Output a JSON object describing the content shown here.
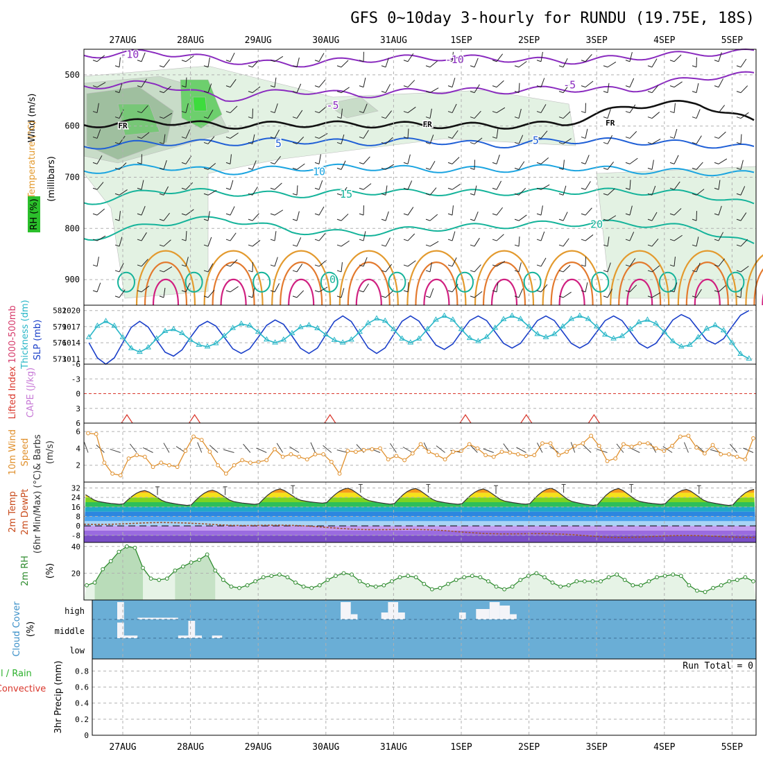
{
  "title": "GFS 0~10day 3-hourly for RUNDU (19.75E, 18S)",
  "dates": [
    "27AUG",
    "28AUG",
    "29AUG",
    "30AUG",
    "31AUG",
    "1SEP",
    "2SEP",
    "3SEP",
    "4SEP",
    "5SEP"
  ],
  "colors": {
    "rh_green": "#2bbf2b",
    "temp_purple": "#8a2bbf",
    "temp_blue": "#1f5fd6",
    "temp_cyan": "#1aa4e0",
    "temp_teal": "#14b39a",
    "temp_orange": "#e39a2e",
    "slp_blue": "#1a3fc9",
    "thick_cyan": "#2ab7c8",
    "li_red": "#d9362b",
    "wind_orange": "#e0902d",
    "rh_line": "#2e8b2e",
    "cloud_bg": "#6aaed6",
    "grid": "#b0b0b0"
  },
  "chart_data": [
    {
      "type": "contour",
      "panel": "upper-air",
      "ylabel": "(millibars)",
      "left_labels": [
        "Temperature (°C)",
        "Wind (m/s)",
        "RH (%)"
      ],
      "y_ticks": [
        500,
        600,
        700,
        800,
        900
      ],
      "ylim": [
        450,
        950
      ],
      "contour_labels": [
        {
          "text": "-10",
          "date_index": 0.1,
          "p": 460
        },
        {
          "text": "-10",
          "date_index": 4.9,
          "p": 470
        },
        {
          "text": "-5",
          "date_index": 3.1,
          "p": 560
        },
        {
          "text": "-5",
          "date_index": 6.6,
          "p": 520
        },
        {
          "text": "FR",
          "date_index": 0.0,
          "p": 598
        },
        {
          "text": "FR",
          "date_index": 4.5,
          "p": 595
        },
        {
          "text": "FR",
          "date_index": 7.2,
          "p": 592
        },
        {
          "text": "5",
          "date_index": 2.3,
          "p": 634
        },
        {
          "text": "5",
          "date_index": 6.1,
          "p": 628
        },
        {
          "text": "10",
          "date_index": 2.9,
          "p": 689
        },
        {
          "text": "15",
          "date_index": 3.3,
          "p": 733
        },
        {
          "text": "20",
          "date_index": 7.0,
          "p": 792
        },
        {
          "text": "0",
          "date_index": 3.1,
          "p": 900
        }
      ],
      "isotherms": [
        {
          "value": -10,
          "color": "purple",
          "p_series": [
            462,
            455,
            472,
            480,
            470,
            466,
            468,
            474,
            466,
            458,
            455
          ]
        },
        {
          "value": -5,
          "color": "purple",
          "p_series": [
            522,
            516,
            548,
            530,
            540,
            530,
            532,
            527,
            530,
            505,
            498
          ]
        },
        {
          "value": 0,
          "color": "black",
          "p_series": [
            598,
            590,
            600,
            596,
            597,
            598,
            600,
            596,
            560,
            555,
            600
          ]
        },
        {
          "value": 5,
          "color": "blue",
          "p_series": [
            640,
            632,
            633,
            628,
            633,
            628,
            638,
            628,
            630,
            635,
            645
          ]
        },
        {
          "value": 10,
          "color": "cyan",
          "p_series": [
            688,
            678,
            690,
            682,
            680,
            685,
            685,
            680,
            687,
            690,
            695
          ]
        },
        {
          "value": 15,
          "color": "teal",
          "p_series": [
            750,
            725,
            730,
            735,
            728,
            730,
            730,
            727,
            728,
            732,
            760
          ]
        },
        {
          "value": 20,
          "color": "teal",
          "p_series": [
            820,
            790,
            780,
            805,
            810,
            800,
            795,
            790,
            790,
            800,
            840
          ]
        }
      ]
    },
    {
      "type": "line",
      "panel": "pressure",
      "left_labels": [
        "1000-500mb",
        "Thickness (dm)",
        "SLP (mb)"
      ],
      "y_ticks_left": [
        573,
        576,
        579,
        582
      ],
      "y_ticks_right": [
        1011,
        1014,
        1017,
        1020
      ],
      "ylim_left": [
        572,
        583
      ],
      "series": [
        {
          "name": "SLP",
          "axis": "right",
          "daily_high": [
            1018,
            1018,
            1018,
            1019,
            1019,
            1019,
            1019,
            1019,
            1019,
            1020
          ],
          "daily_low": [
            1010,
            1012,
            1012,
            1012,
            1012,
            1013,
            1013,
            1013,
            1013,
            1014
          ]
        },
        {
          "name": "Thickness",
          "axis": "left",
          "daily_high": [
            580,
            578,
            580,
            579,
            581,
            581,
            581,
            581,
            580,
            579
          ],
          "daily_low": [
            574,
            575,
            576,
            576,
            576,
            576,
            577,
            577,
            576,
            573
          ]
        }
      ]
    },
    {
      "type": "line",
      "panel": "stability",
      "left_labels": [
        "Lifted Index",
        "CAPE (J/kg)"
      ],
      "y_ticks": [
        -6,
        -3,
        0,
        3,
        6
      ],
      "tick_labels": [
        "-6",
        "-3",
        "0",
        "3",
        "6"
      ],
      "ylim": [
        -6,
        6
      ],
      "cape_spikes_date_index": [
        -0.4,
        0.6,
        2.6,
        4.6,
        5.5,
        6.5
      ]
    },
    {
      "type": "line",
      "panel": "10m-wind",
      "left_labels": [
        "10m Wind",
        "Speed",
        "& Barbs",
        "(m/s)"
      ],
      "y_ticks": [
        2,
        4,
        6
      ],
      "ylim": [
        0,
        7
      ],
      "series": [
        {
          "name": "Speed",
          "values": [
            5.8,
            5.7,
            2.3,
            1.0,
            0.8,
            2.8,
            3.2,
            3.0,
            1.8,
            2.3,
            2.0,
            1.8,
            3.7,
            5.4,
            5.0,
            3.6,
            2.0,
            1.0,
            2.0,
            2.6,
            2.3,
            2.4,
            2.6,
            3.9,
            3.0,
            3.3,
            3.0,
            2.7,
            3.3,
            3.3,
            2.4,
            1.0,
            3.7,
            3.6,
            3.8,
            3.9,
            4.0,
            2.7,
            3.1,
            2.6,
            3.4,
            4.5,
            3.6,
            3.2,
            2.7,
            3.6,
            3.7,
            4.5,
            4.0,
            3.2,
            3.0,
            3.6,
            3.5,
            3.3,
            3.1,
            3.2,
            4.6,
            4.6,
            3.2,
            3.6,
            4.3,
            4.6,
            5.5,
            4.3,
            2.5,
            2.8,
            4.5,
            4.2,
            4.6,
            4.6,
            4.0,
            3.7,
            4.3,
            5.4,
            5.5,
            4.1,
            3.4,
            4.4,
            3.3,
            3.3,
            3.0,
            2.7,
            5.2
          ]
        }
      ]
    },
    {
      "type": "area",
      "panel": "2m-temp",
      "left_labels": [
        "2m Temp",
        "2m DewPt",
        "(6hr Min/Max) (°C)"
      ],
      "y_ticks": [
        32,
        24,
        16,
        8,
        0,
        -8
      ],
      "tick_labels": [
        "32",
        "24",
        "16",
        "8",
        "0",
        "-8"
      ],
      "ylim": [
        -14,
        37
      ],
      "temp_daily_max": [
        30,
        30,
        31,
        32,
        32,
        31,
        32,
        32,
        31,
        31
      ],
      "temp_daily_min": [
        18,
        17,
        18,
        19,
        18,
        18,
        18,
        17,
        18,
        17
      ],
      "dewpt_start": 2,
      "dewpt_end": -9
    },
    {
      "type": "area",
      "panel": "2m-rh",
      "left_labels": [
        "2m RH",
        "(%)"
      ],
      "y_ticks": [
        20,
        40
      ],
      "ylim": [
        0,
        43
      ],
      "series": [
        {
          "name": "RH",
          "values": [
            11,
            13,
            23,
            29,
            36,
            40,
            39,
            24,
            16,
            15,
            16,
            22,
            25,
            28,
            30,
            34,
            22,
            15,
            10,
            9,
            11,
            14,
            17,
            18,
            19,
            17,
            13,
            10,
            9,
            11,
            15,
            18,
            20,
            19,
            14,
            11,
            10,
            11,
            14,
            17,
            18,
            17,
            12,
            8,
            9,
            12,
            15,
            17,
            18,
            17,
            14,
            10,
            8,
            10,
            15,
            18,
            20,
            17,
            13,
            10,
            11,
            14,
            14,
            14,
            14,
            17,
            19,
            15,
            11,
            11,
            14,
            17,
            18,
            19,
            18,
            11,
            7,
            6,
            9,
            11,
            14,
            15,
            17,
            14
          ]
        }
      ]
    },
    {
      "type": "bar",
      "panel": "cloud-cover",
      "left_labels": [
        "Cloud Cover",
        "(%)"
      ],
      "tick_labels": [
        "high",
        "middle",
        "low"
      ],
      "high_cloud_blocks": [
        {
          "start": 0.0,
          "end": 0.1,
          "amount": 1.0
        },
        {
          "start": 0.3,
          "end": 0.9,
          "amount": 0.1
        },
        {
          "start": 3.3,
          "end": 3.45,
          "amount": 1.0
        },
        {
          "start": 3.45,
          "end": 3.55,
          "amount": 0.3
        },
        {
          "start": 3.9,
          "end": 4.0,
          "amount": 0.4
        },
        {
          "start": 4.0,
          "end": 4.15,
          "amount": 1.0
        },
        {
          "start": 4.15,
          "end": 4.25,
          "amount": 0.4
        },
        {
          "start": 5.05,
          "end": 5.15,
          "amount": 0.4
        },
        {
          "start": 5.3,
          "end": 5.5,
          "amount": 0.6
        },
        {
          "start": 5.5,
          "end": 5.65,
          "amount": 1.0
        },
        {
          "start": 5.65,
          "end": 5.8,
          "amount": 0.8
        },
        {
          "start": 5.8,
          "end": 5.9,
          "amount": 0.3
        }
      ],
      "mid_cloud_blocks": [
        {
          "start": 0.0,
          "end": 0.1,
          "amount": 0.9
        },
        {
          "start": 0.1,
          "end": 0.3,
          "amount": 0.15
        },
        {
          "start": 0.9,
          "end": 1.05,
          "amount": 0.15
        },
        {
          "start": 1.05,
          "end": 1.15,
          "amount": 1.0
        },
        {
          "start": 1.15,
          "end": 1.25,
          "amount": 0.15
        },
        {
          "start": 1.4,
          "end": 1.55,
          "amount": 0.15
        }
      ]
    },
    {
      "type": "line",
      "panel": "precip",
      "left_labels": [
        "Total / Rain",
        "Convective",
        "3hr Precip (mm)"
      ],
      "y_ticks": [
        0,
        0.2,
        0.4,
        0.6,
        0.8
      ],
      "tick_labels": [
        "0",
        "0.2",
        "0.4",
        "0.6",
        "0.8"
      ],
      "ylim": [
        0,
        0.95
      ],
      "annotation": "Run Total = 0"
    }
  ]
}
